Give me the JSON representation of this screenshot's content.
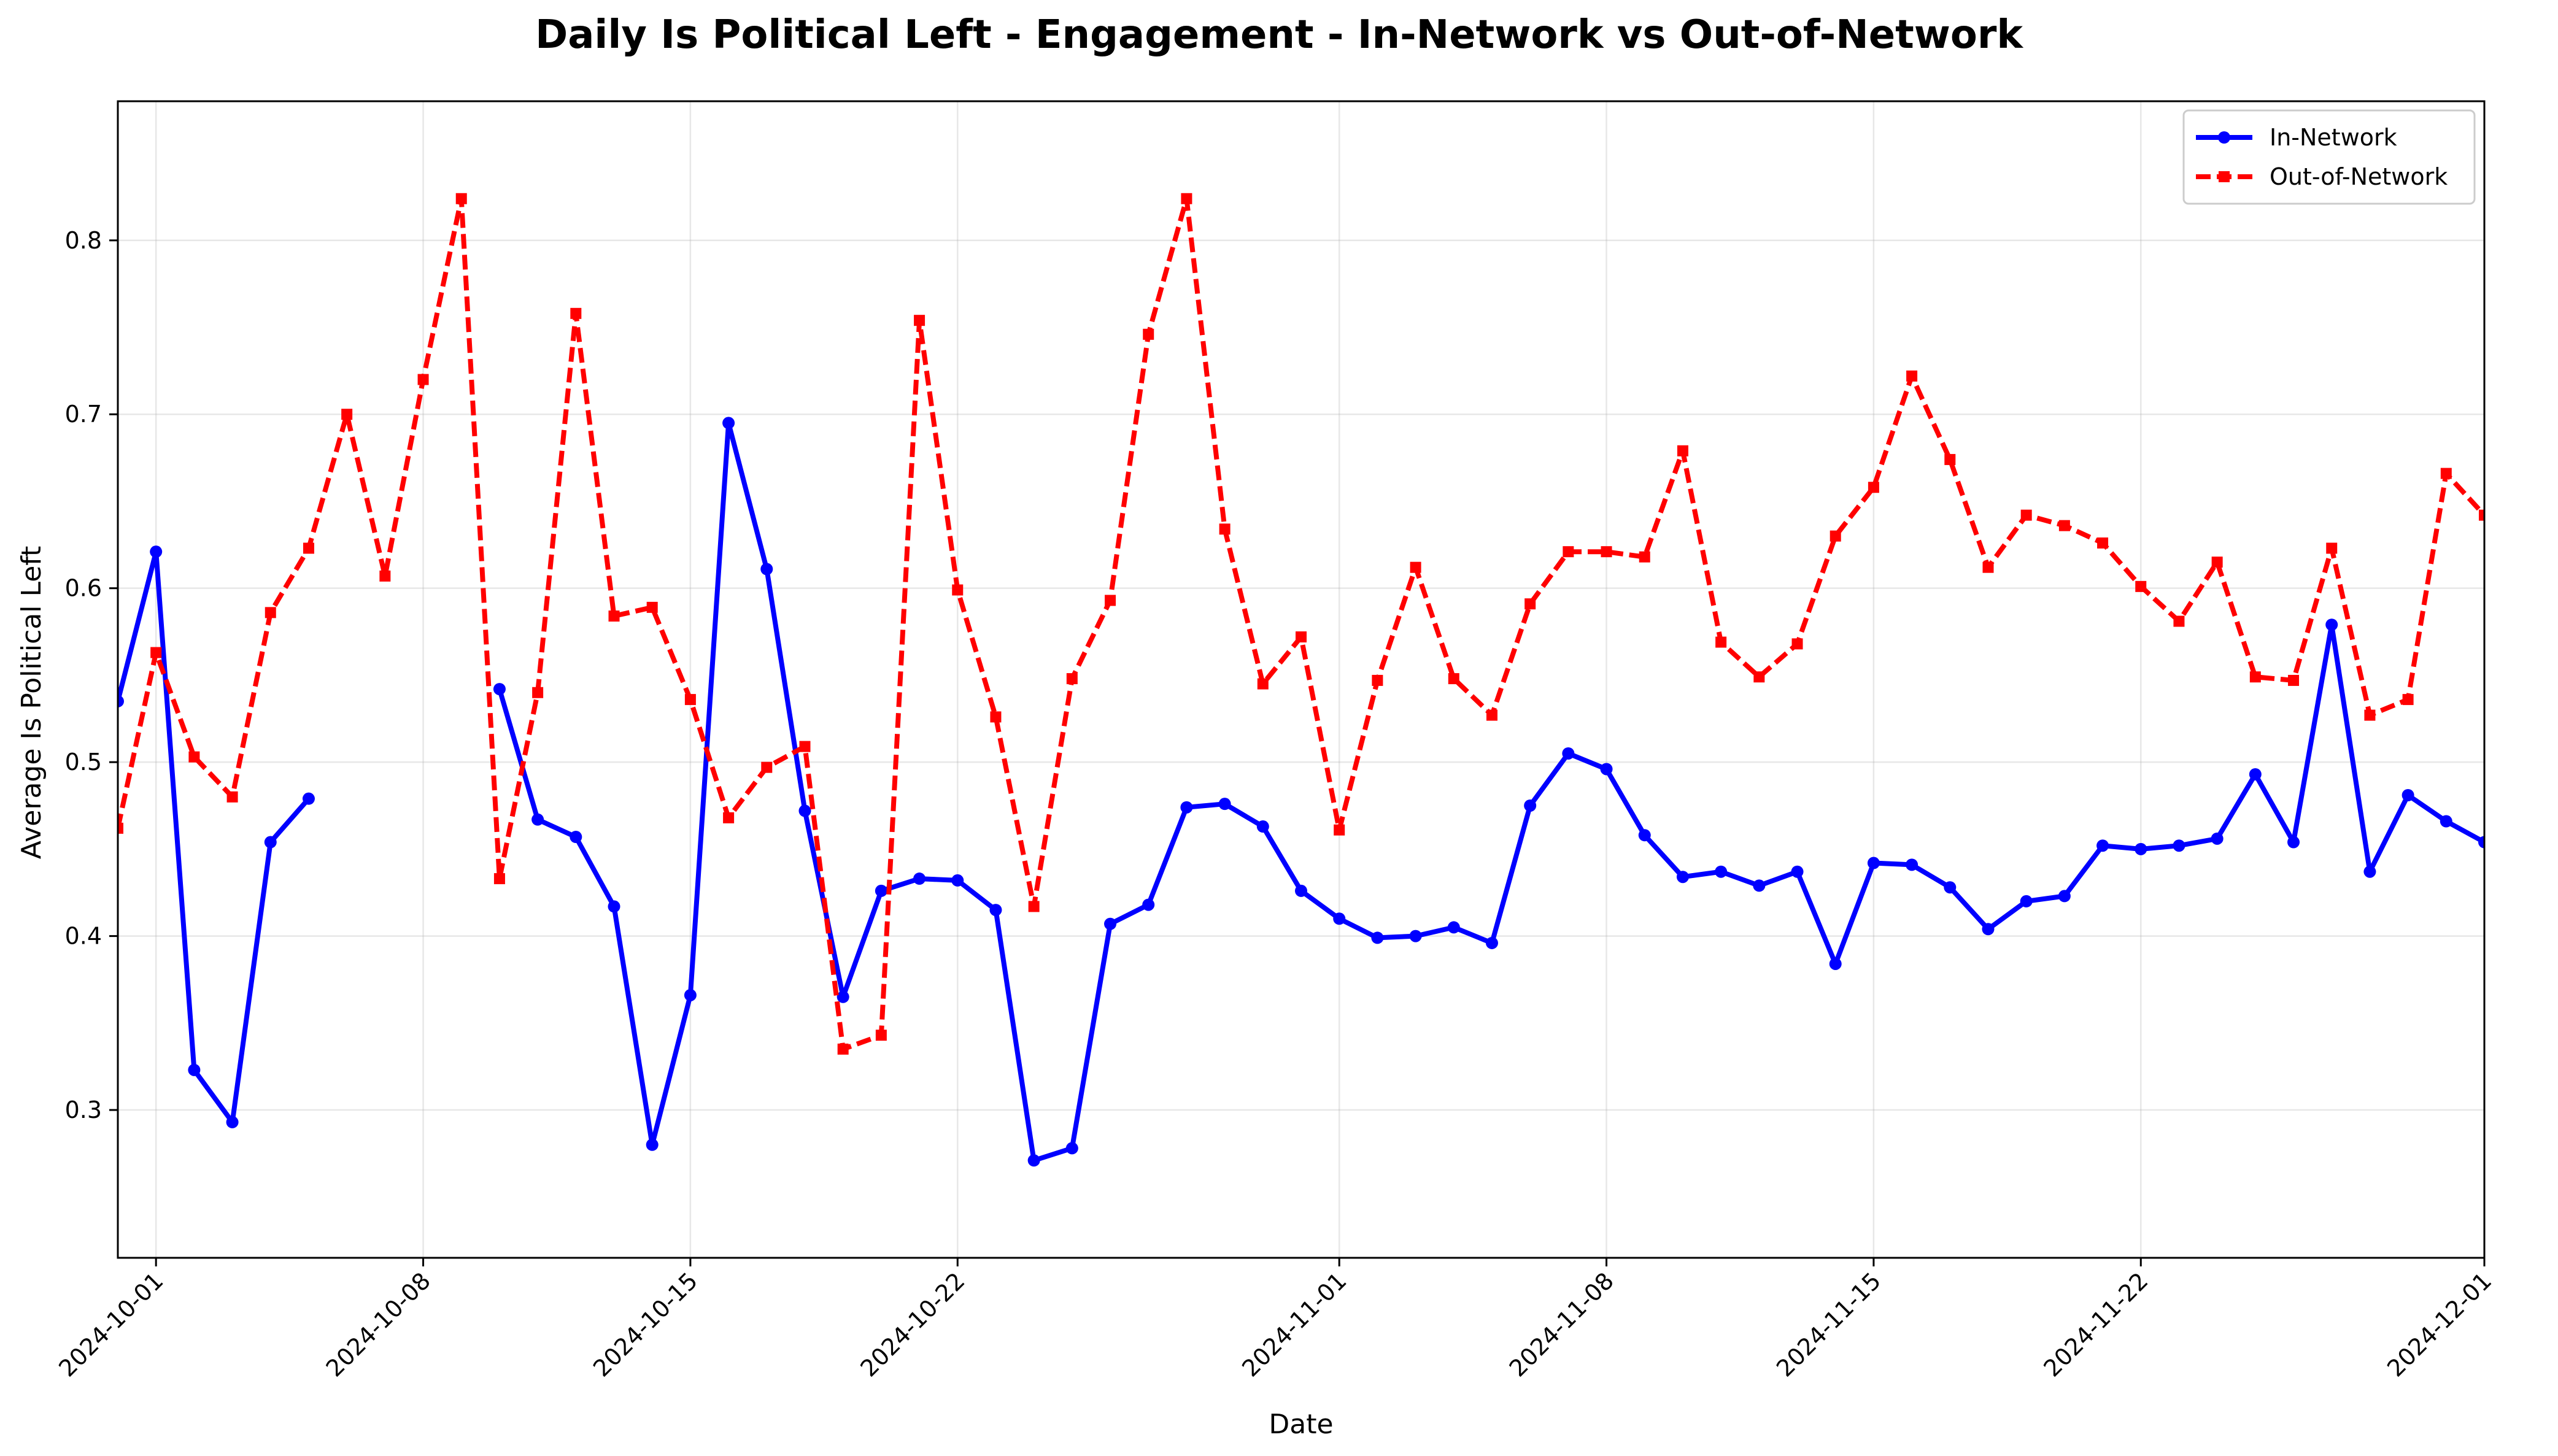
{
  "chart_data": {
    "type": "line",
    "title": "Daily Is Political Left - Engagement - In-Network vs Out-of-Network",
    "xlabel": "Date",
    "ylabel": "Average Is Political Left",
    "xlim": [
      "2024-09-30",
      "2024-12-01"
    ],
    "ylim": [
      0.215,
      0.88
    ],
    "x_ticks": [
      "2024-10-01",
      "2024-10-08",
      "2024-10-15",
      "2024-10-22",
      "2024-11-01",
      "2024-11-08",
      "2024-11-15",
      "2024-11-22",
      "2024-12-01"
    ],
    "y_ticks": [
      0.3,
      0.4,
      0.5,
      0.6,
      0.7,
      0.8
    ],
    "grid": true,
    "legend_position": "top-right",
    "series": [
      {
        "name": "In-Network",
        "color": "#0000ff",
        "line_style": "solid",
        "marker": "circle",
        "points": [
          [
            "2024-09-30",
            0.535
          ],
          [
            "2024-10-01",
            0.621
          ],
          [
            "2024-10-02",
            0.323
          ],
          [
            "2024-10-03",
            0.293
          ],
          [
            "2024-10-04",
            0.454
          ],
          [
            "2024-10-05",
            0.479
          ],
          [
            "2024-10-06",
            null
          ],
          [
            "2024-10-07",
            null
          ],
          [
            "2024-10-08",
            null
          ],
          [
            "2024-10-09",
            null
          ],
          [
            "2024-10-10",
            0.542
          ],
          [
            "2024-10-11",
            0.467
          ],
          [
            "2024-10-12",
            0.457
          ],
          [
            "2024-10-13",
            0.417
          ],
          [
            "2024-10-14",
            0.28
          ],
          [
            "2024-10-15",
            0.366
          ],
          [
            "2024-10-16",
            0.695
          ],
          [
            "2024-10-17",
            0.611
          ],
          [
            "2024-10-18",
            0.472
          ],
          [
            "2024-10-19",
            0.365
          ],
          [
            "2024-10-20",
            0.426
          ],
          [
            "2024-10-21",
            0.433
          ],
          [
            "2024-10-22",
            0.432
          ],
          [
            "2024-10-23",
            0.415
          ],
          [
            "2024-10-24",
            0.271
          ],
          [
            "2024-10-25",
            0.278
          ],
          [
            "2024-10-26",
            0.407
          ],
          [
            "2024-10-27",
            0.418
          ],
          [
            "2024-10-28",
            0.474
          ],
          [
            "2024-10-29",
            0.476
          ],
          [
            "2024-10-30",
            0.463
          ],
          [
            "2024-10-31",
            0.426
          ],
          [
            "2024-11-01",
            0.41
          ],
          [
            "2024-11-02",
            0.399
          ],
          [
            "2024-11-03",
            0.4
          ],
          [
            "2024-11-04",
            0.405
          ],
          [
            "2024-11-05",
            0.396
          ],
          [
            "2024-11-06",
            0.475
          ],
          [
            "2024-11-07",
            0.505
          ],
          [
            "2024-11-08",
            0.496
          ],
          [
            "2024-11-09",
            0.458
          ],
          [
            "2024-11-10",
            0.434
          ],
          [
            "2024-11-11",
            0.437
          ],
          [
            "2024-11-12",
            0.429
          ],
          [
            "2024-11-13",
            0.437
          ],
          [
            "2024-11-14",
            0.384
          ],
          [
            "2024-11-15",
            0.442
          ],
          [
            "2024-11-16",
            0.441
          ],
          [
            "2024-11-17",
            0.428
          ],
          [
            "2024-11-18",
            0.404
          ],
          [
            "2024-11-19",
            0.42
          ],
          [
            "2024-11-20",
            0.423
          ],
          [
            "2024-11-21",
            0.452
          ],
          [
            "2024-11-22",
            0.45
          ],
          [
            "2024-11-23",
            0.452
          ],
          [
            "2024-11-24",
            0.456
          ],
          [
            "2024-11-25",
            0.493
          ],
          [
            "2024-11-26",
            0.454
          ],
          [
            "2024-11-27",
            0.579
          ],
          [
            "2024-11-28",
            0.437
          ],
          [
            "2024-11-29",
            0.481
          ],
          [
            "2024-11-30",
            0.466
          ],
          [
            "2024-12-01",
            0.454
          ]
        ]
      },
      {
        "name": "Out-of-Network",
        "color": "#ff0000",
        "line_style": "dashed",
        "marker": "square",
        "points": [
          [
            "2024-09-30",
            0.462
          ],
          [
            "2024-10-01",
            0.563
          ],
          [
            "2024-10-02",
            0.503
          ],
          [
            "2024-10-03",
            0.48
          ],
          [
            "2024-10-04",
            0.586
          ],
          [
            "2024-10-05",
            0.623
          ],
          [
            "2024-10-06",
            0.7
          ],
          [
            "2024-10-07",
            0.607
          ],
          [
            "2024-10-08",
            0.72
          ],
          [
            "2024-10-09",
            0.824
          ],
          [
            "2024-10-10",
            0.433
          ],
          [
            "2024-10-11",
            0.54
          ],
          [
            "2024-10-12",
            0.758
          ],
          [
            "2024-10-13",
            0.584
          ],
          [
            "2024-10-14",
            0.589
          ],
          [
            "2024-10-15",
            0.536
          ],
          [
            "2024-10-16",
            0.468
          ],
          [
            "2024-10-17",
            0.497
          ],
          [
            "2024-10-18",
            0.509
          ],
          [
            "2024-10-19",
            0.335
          ],
          [
            "2024-10-20",
            0.343
          ],
          [
            "2024-10-21",
            0.754
          ],
          [
            "2024-10-22",
            0.599
          ],
          [
            "2024-10-23",
            0.526
          ],
          [
            "2024-10-24",
            0.417
          ],
          [
            "2024-10-25",
            0.548
          ],
          [
            "2024-10-26",
            0.593
          ],
          [
            "2024-10-27",
            0.746
          ],
          [
            "2024-10-28",
            0.824
          ],
          [
            "2024-10-29",
            0.634
          ],
          [
            "2024-10-30",
            0.545
          ],
          [
            "2024-10-31",
            0.572
          ],
          [
            "2024-11-01",
            0.461
          ],
          [
            "2024-11-02",
            0.547
          ],
          [
            "2024-11-03",
            0.612
          ],
          [
            "2024-11-04",
            0.548
          ],
          [
            "2024-11-05",
            0.527
          ],
          [
            "2024-11-06",
            0.591
          ],
          [
            "2024-11-07",
            0.621
          ],
          [
            "2024-11-08",
            0.621
          ],
          [
            "2024-11-09",
            0.618
          ],
          [
            "2024-11-10",
            0.679
          ],
          [
            "2024-11-11",
            0.569
          ],
          [
            "2024-11-12",
            0.549
          ],
          [
            "2024-11-13",
            0.568
          ],
          [
            "2024-11-14",
            0.63
          ],
          [
            "2024-11-15",
            0.658
          ],
          [
            "2024-11-16",
            0.722
          ],
          [
            "2024-11-17",
            0.674
          ],
          [
            "2024-11-18",
            0.612
          ],
          [
            "2024-11-19",
            0.642
          ],
          [
            "2024-11-20",
            0.636
          ],
          [
            "2024-11-21",
            0.626
          ],
          [
            "2024-11-22",
            0.601
          ],
          [
            "2024-11-23",
            0.581
          ],
          [
            "2024-11-24",
            0.615
          ],
          [
            "2024-11-25",
            0.549
          ],
          [
            "2024-11-26",
            0.547
          ],
          [
            "2024-11-27",
            0.623
          ],
          [
            "2024-11-28",
            0.527
          ],
          [
            "2024-11-29",
            0.536
          ],
          [
            "2024-11-30",
            0.666
          ],
          [
            "2024-12-01",
            0.642
          ]
        ]
      }
    ]
  }
}
